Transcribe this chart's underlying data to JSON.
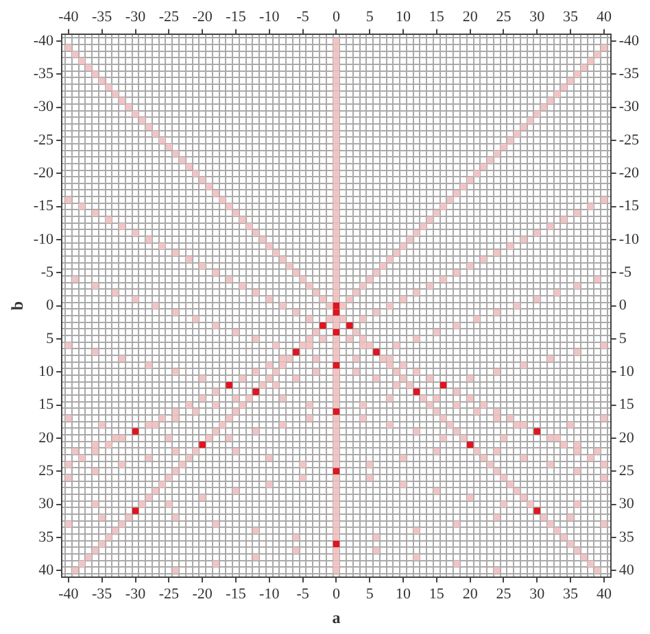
{
  "chart_data": {
    "type": "scatter",
    "xlabel": "a",
    "ylabel": "b",
    "marker": "square",
    "grid": true,
    "legend": false,
    "xlim": [
      -41,
      41
    ],
    "ylim": [
      41,
      -41
    ],
    "xticks": [
      {
        "value": -40.5,
        "label": null
      },
      -40,
      {
        "value": -39.5,
        "label": null
      },
      {
        "value": -38.5,
        "label": null
      },
      {
        "value": -37.5,
        "label": null
      },
      {
        "value": -36.5,
        "label": null
      },
      {
        "value": -35.5,
        "label": null
      },
      -35,
      {
        "value": -34.5,
        "label": null
      },
      {
        "value": -33.5,
        "label": null
      },
      {
        "value": -32.5,
        "label": null
      },
      {
        "value": -31.5,
        "label": null
      },
      {
        "value": -30.5,
        "label": null
      },
      -30,
      {
        "value": -29.5,
        "label": null
      },
      {
        "value": -28.5,
        "label": null
      },
      {
        "value": -27.5,
        "label": null
      },
      {
        "value": -26.5,
        "label": null
      },
      {
        "value": -25.5,
        "label": null
      },
      -25,
      {
        "value": -24.5,
        "label": null
      },
      {
        "value": -23.5,
        "label": null
      },
      {
        "value": -22.5,
        "label": null
      },
      {
        "value": -21.5,
        "label": null
      },
      {
        "value": -20.5,
        "label": null
      },
      -20,
      {
        "value": -19.5,
        "label": null
      },
      {
        "value": -18.5,
        "label": null
      },
      {
        "value": -17.5,
        "label": null
      },
      {
        "value": -16.5,
        "label": null
      },
      {
        "value": -15.5,
        "label": null
      },
      -15,
      {
        "value": -14.5,
        "label": null
      },
      {
        "value": -13.5,
        "label": null
      },
      {
        "value": -12.5,
        "label": null
      },
      {
        "value": -11.5,
        "label": null
      },
      {
        "value": -10.5,
        "label": null
      },
      -10,
      {
        "value": -9.5,
        "label": null
      },
      {
        "value": -8.5,
        "label": null
      },
      {
        "value": -7.5,
        "label": null
      },
      {
        "value": -6.5,
        "label": null
      },
      {
        "value": -5.5,
        "label": null
      },
      -5,
      {
        "value": -4.5,
        "label": null
      },
      {
        "value": -3.5,
        "label": null
      },
      {
        "value": -2.5,
        "label": null
      },
      {
        "value": -1.5,
        "label": null
      },
      {
        "value": -0.5,
        "label": null
      },
      0,
      {
        "value": 0.5,
        "label": null
      },
      {
        "value": 1.5,
        "label": null
      },
      {
        "value": 2.5,
        "label": null
      },
      {
        "value": 3.5,
        "label": null
      },
      {
        "value": 4.5,
        "label": null
      },
      5,
      {
        "value": 5.5,
        "label": null
      },
      {
        "value": 6.5,
        "label": null
      },
      {
        "value": 7.5,
        "label": null
      },
      {
        "value": 8.5,
        "label": null
      },
      {
        "value": 9.5,
        "label": null
      },
      10,
      {
        "value": 10.5,
        "label": null
      },
      {
        "value": 11.5,
        "label": null
      },
      {
        "value": 12.5,
        "label": null
      },
      {
        "value": 13.5,
        "label": null
      },
      {
        "value": 14.5,
        "label": null
      },
      15,
      {
        "value": 15.5,
        "label": null
      },
      {
        "value": 16.5,
        "label": null
      },
      {
        "value": 17.5,
        "label": null
      },
      {
        "value": 18.5,
        "label": null
      },
      {
        "value": 19.5,
        "label": null
      },
      20,
      {
        "value": 20.5,
        "label": null
      },
      {
        "value": 21.5,
        "label": null
      },
      {
        "value": 22.5,
        "label": null
      },
      {
        "value": 23.5,
        "label": null
      },
      {
        "value": 24.5,
        "label": null
      },
      25,
      {
        "value": 25.5,
        "label": null
      },
      {
        "value": 26.5,
        "label": null
      },
      {
        "value": 27.5,
        "label": null
      },
      {
        "value": 28.5,
        "label": null
      },
      {
        "value": 29.5,
        "label": null
      },
      30,
      {
        "value": 30.5,
        "label": null
      },
      {
        "value": 31.5,
        "label": null
      },
      {
        "value": 32.5,
        "label": null
      },
      {
        "value": 33.5,
        "label": null
      },
      {
        "value": 34.5,
        "label": null
      },
      35,
      {
        "value": 35.5,
        "label": null
      },
      {
        "value": 36.5,
        "label": null
      },
      {
        "value": 37.5,
        "label": null
      },
      {
        "value": 38.5,
        "label": null
      },
      {
        "value": 39.5,
        "label": null
      },
      40,
      {
        "value": 40.5,
        "label": null
      }
    ],
    "yticks": [
      {
        "value": -40.5,
        "label": null
      },
      -40,
      {
        "value": -39.5,
        "label": null
      },
      {
        "value": -38.5,
        "label": null
      },
      {
        "value": -37.5,
        "label": null
      },
      {
        "value": -36.5,
        "label": null
      },
      {
        "value": -35.5,
        "label": null
      },
      -35,
      {
        "value": -34.5,
        "label": null
      },
      {
        "value": -33.5,
        "label": null
      },
      {
        "value": -32.5,
        "label": null
      },
      {
        "value": -31.5,
        "label": null
      },
      {
        "value": -30.5,
        "label": null
      },
      -30,
      {
        "value": -29.5,
        "label": null
      },
      {
        "value": -28.5,
        "label": null
      },
      {
        "value": -27.5,
        "label": null
      },
      {
        "value": -26.5,
        "label": null
      },
      {
        "value": -25.5,
        "label": null
      },
      -25,
      {
        "value": -24.5,
        "label": null
      },
      {
        "value": -23.5,
        "label": null
      },
      {
        "value": -22.5,
        "label": null
      },
      {
        "value": -21.5,
        "label": null
      },
      {
        "value": -20.5,
        "label": null
      },
      -20,
      {
        "value": -19.5,
        "label": null
      },
      {
        "value": -18.5,
        "label": null
      },
      {
        "value": -17.5,
        "label": null
      },
      {
        "value": -16.5,
        "label": null
      },
      {
        "value": -15.5,
        "label": null
      },
      -15,
      {
        "value": -14.5,
        "label": null
      },
      {
        "value": -13.5,
        "label": null
      },
      {
        "value": -12.5,
        "label": null
      },
      {
        "value": -11.5,
        "label": null
      },
      {
        "value": -10.5,
        "label": null
      },
      -10,
      {
        "value": -9.5,
        "label": null
      },
      {
        "value": -8.5,
        "label": null
      },
      {
        "value": -7.5,
        "label": null
      },
      {
        "value": -6.5,
        "label": null
      },
      {
        "value": -5.5,
        "label": null
      },
      -5,
      {
        "value": -4.5,
        "label": null
      },
      {
        "value": -3.5,
        "label": null
      },
      {
        "value": -2.5,
        "label": null
      },
      {
        "value": -1.5,
        "label": null
      },
      {
        "value": -0.5,
        "label": null
      },
      0,
      {
        "value": 0.5,
        "label": null
      },
      {
        "value": 1.5,
        "label": null
      },
      {
        "value": 2.5,
        "label": null
      },
      {
        "value": 3.5,
        "label": null
      },
      {
        "value": 4.5,
        "label": null
      },
      5,
      {
        "value": 5.5,
        "label": null
      },
      {
        "value": 6.5,
        "label": null
      },
      {
        "value": 7.5,
        "label": null
      },
      {
        "value": 8.5,
        "label": null
      },
      {
        "value": 9.5,
        "label": null
      },
      10,
      {
        "value": 10.5,
        "label": null
      },
      {
        "value": 11.5,
        "label": null
      },
      {
        "value": 12.5,
        "label": null
      },
      {
        "value": 13.5,
        "label": null
      },
      {
        "value": 14.5,
        "label": null
      },
      15,
      {
        "value": 15.5,
        "label": null
      },
      {
        "value": 16.5,
        "label": null
      },
      {
        "value": 17.5,
        "label": null
      },
      {
        "value": 18.5,
        "label": null
      },
      {
        "value": 19.5,
        "label": null
      },
      20,
      {
        "value": 20.5,
        "label": null
      },
      {
        "value": 21.5,
        "label": null
      },
      {
        "value": 22.5,
        "label": null
      },
      {
        "value": 23.5,
        "label": null
      },
      {
        "value": 24.5,
        "label": null
      },
      25,
      {
        "value": 25.5,
        "label": null
      },
      {
        "value": 26.5,
        "label": null
      },
      {
        "value": 27.5,
        "label": null
      },
      {
        "value": 28.5,
        "label": null
      },
      {
        "value": 29.5,
        "label": null
      },
      30,
      {
        "value": 30.5,
        "label": null
      },
      {
        "value": 31.5,
        "label": null
      },
      {
        "value": 32.5,
        "label": null
      },
      {
        "value": 33.5,
        "label": null
      },
      {
        "value": 34.5,
        "label": null
      },
      35,
      {
        "value": 35.5,
        "label": null
      },
      {
        "value": 36.5,
        "label": null
      },
      {
        "value": 37.5,
        "label": null
      },
      {
        "value": 38.5,
        "label": null
      },
      {
        "value": 39.5,
        "label": null
      },
      40,
      {
        "value": 40.5,
        "label": null
      }
    ],
    "x2lim": [
      -41,
      41
    ],
    "x2ticks": [
      -40,
      -35,
      -30,
      -25,
      -20,
      -15,
      -10,
      -5,
      0,
      5,
      10,
      15,
      20,
      25,
      30,
      35,
      40
    ],
    "y2lim": [
      41,
      -41
    ],
    "y2ticks": [
      -40,
      -35,
      -30,
      -25,
      -20,
      -15,
      -10,
      -5,
      0,
      5,
      10,
      15,
      20,
      25,
      30,
      35,
      40
    ],
    "series": [
      {
        "color": "#e0141e",
        "x": [
          0,
          0,
          0,
          0,
          0,
          0,
          0,
          2,
          -2,
          16,
          -16,
          6,
          -6,
          12,
          -12,
          20,
          -20,
          30,
          -30,
          30,
          -30
        ],
        "values": [
          0,
          1,
          4,
          9,
          16,
          25,
          36,
          3,
          3,
          12,
          12,
          7,
          7,
          13,
          13,
          21,
          21,
          31,
          31,
          19,
          19
        ]
      },
      {
        "color": "#f2c4c4",
        "x": [
          0,
          0,
          0,
          0,
          0,
          0,
          0,
          0,
          0,
          0,
          0,
          0,
          0,
          0,
          0,
          0,
          0,
          0,
          0,
          0,
          0,
          0,
          0,
          0,
          0,
          0,
          0,
          0,
          0,
          0,
          0,
          0,
          0,
          0,
          0,
          0,
          0,
          0,
          0,
          0,
          0,
          0,
          0,
          0,
          0,
          0,
          0,
          0,
          0,
          0,
          0,
          0,
          0,
          0,
          0,
          0,
          0,
          0,
          0,
          0,
          0,
          0,
          0,
          0,
          0,
          0,
          0,
          0,
          0,
          0,
          0,
          0,
          0,
          0
        ],
        "values": [
          -40,
          -39,
          -38,
          -37,
          -36,
          -35,
          -34,
          -33,
          -32,
          -31,
          -30,
          -29,
          -28,
          -27,
          -26,
          -25,
          -24,
          -23,
          -22,
          -21,
          -20,
          -19,
          -18,
          -17,
          -16,
          -15,
          -14,
          -13,
          -12,
          -11,
          -10,
          -9,
          -8,
          -7,
          -6,
          -5,
          -4,
          -3,
          -2,
          -1,
          2,
          3,
          5,
          6,
          7,
          8,
          10,
          11,
          12,
          13,
          14,
          15,
          17,
          18,
          19,
          20,
          21,
          22,
          23,
          24,
          26,
          27,
          28,
          29,
          30,
          31,
          32,
          33,
          34,
          35,
          37,
          38,
          39,
          40
        ]
      },
      {
        "color": "#f2c4c4",
        "x": [
          -40,
          -39,
          -38,
          -37,
          -36,
          -35,
          -34,
          -33,
          -32,
          -31,
          -30,
          -29,
          -28,
          -27,
          -26,
          -25,
          -24,
          -23,
          -22,
          -21,
          -20,
          -19,
          -18,
          -17,
          -16,
          -15,
          -14,
          -13,
          -12,
          -11,
          -10,
          -9,
          -8,
          -7,
          -6,
          -5,
          -4,
          -3,
          -2,
          -1,
          1,
          3,
          4,
          5,
          7,
          8,
          9,
          10,
          11,
          13,
          14,
          15,
          16,
          17,
          18,
          19,
          21,
          22,
          23,
          24,
          25,
          26,
          27,
          28,
          29,
          31,
          32,
          33,
          34,
          35,
          36,
          37,
          38,
          39
        ],
        "values": [
          -39,
          -38,
          -37,
          -36,
          -35,
          -34,
          -33,
          -32,
          -31,
          -30,
          -29,
          -28,
          -27,
          -26,
          -25,
          -24,
          -23,
          -22,
          -21,
          -20,
          -19,
          -18,
          -17,
          -16,
          -15,
          -14,
          -13,
          -12,
          -11,
          -10,
          -9,
          -8,
          -7,
          -6,
          -5,
          -4,
          -3,
          -2,
          -1,
          0,
          2,
          4,
          5,
          6,
          8,
          9,
          10,
          11,
          12,
          14,
          15,
          16,
          17,
          18,
          19,
          20,
          22,
          23,
          24,
          25,
          26,
          27,
          28,
          29,
          30,
          32,
          33,
          34,
          35,
          36,
          37,
          38,
          39,
          40
        ]
      },
      {
        "color": "#f2c4c4",
        "x": [
          40,
          39,
          38,
          37,
          36,
          35,
          34,
          33,
          32,
          31,
          30,
          29,
          28,
          27,
          26,
          25,
          24,
          23,
          22,
          21,
          20,
          19,
          18,
          17,
          16,
          15,
          14,
          13,
          12,
          11,
          10,
          9,
          8,
          7,
          6,
          5,
          4,
          3,
          2,
          1,
          -1,
          -3,
          -4,
          -5,
          -7,
          -8,
          -9,
          -10,
          -11,
          -13,
          -14,
          -15,
          -16,
          -17,
          -18,
          -19,
          -21,
          -22,
          -23,
          -24,
          -25,
          -26,
          -27,
          -28,
          -29,
          -31,
          -32,
          -33,
          -34,
          -35,
          -36,
          -37,
          -38,
          -39
        ],
        "values": [
          -39,
          -38,
          -37,
          -36,
          -35,
          -34,
          -33,
          -32,
          -31,
          -30,
          -29,
          -28,
          -27,
          -26,
          -25,
          -24,
          -23,
          -22,
          -21,
          -20,
          -19,
          -18,
          -17,
          -16,
          -15,
          -14,
          -13,
          -12,
          -11,
          -10,
          -9,
          -8,
          -7,
          -6,
          -5,
          -4,
          -3,
          -2,
          -1,
          0,
          2,
          4,
          5,
          6,
          8,
          9,
          10,
          11,
          12,
          14,
          15,
          16,
          17,
          18,
          19,
          20,
          22,
          23,
          24,
          25,
          26,
          27,
          28,
          29,
          30,
          32,
          33,
          34,
          35,
          36,
          37,
          38,
          39,
          40
        ]
      },
      {
        "color": "#f2c4c4",
        "x": [
          -40,
          -38,
          -36,
          -34,
          -32,
          -30,
          -28,
          -26,
          -24,
          -22,
          -20,
          -18,
          -16,
          -14,
          -12,
          -10,
          -8,
          -6,
          -4,
          2,
          4,
          8,
          10,
          12,
          14,
          18,
          20,
          22,
          24,
          26,
          28,
          32,
          34,
          36,
          38,
          40
        ],
        "values": [
          -16,
          -15,
          -14,
          -13,
          -12,
          -11,
          -10,
          -9,
          -8,
          -7,
          -6,
          -5,
          -4,
          -3,
          -2,
          -1,
          0,
          1,
          2,
          5,
          6,
          8,
          9,
          10,
          11,
          13,
          14,
          15,
          16,
          17,
          18,
          20,
          21,
          22,
          23,
          24
        ]
      },
      {
        "color": "#f2c4c4",
        "x": [
          40,
          38,
          36,
          34,
          32,
          30,
          28,
          26,
          24,
          22,
          20,
          18,
          16,
          14,
          12,
          10,
          8,
          6,
          4,
          -2,
          -4,
          -8,
          -10,
          -12,
          -14,
          -18,
          -20,
          -22,
          -24,
          -26,
          -28,
          -32,
          -34,
          -36,
          -38,
          -40
        ],
        "values": [
          -16,
          -15,
          -14,
          -13,
          -12,
          -11,
          -10,
          -9,
          -8,
          -7,
          -6,
          -5,
          -4,
          -3,
          -2,
          -1,
          0,
          1,
          2,
          5,
          6,
          8,
          9,
          10,
          11,
          13,
          14,
          15,
          16,
          17,
          18,
          20,
          21,
          22,
          23,
          24
        ]
      },
      {
        "color": "#f2c4c4",
        "x": [
          -39,
          -36,
          -33,
          -30,
          -27,
          -24,
          -21,
          -18,
          -15,
          -12,
          -9,
          -3,
          3,
          6,
          9,
          15,
          18,
          21,
          24,
          27,
          33,
          36,
          39
        ],
        "values": [
          -4,
          -3,
          -2,
          -1,
          0,
          1,
          2,
          3,
          4,
          5,
          6,
          8,
          10,
          11,
          12,
          14,
          15,
          16,
          17,
          18,
          20,
          21,
          22
        ]
      },
      {
        "color": "#f2c4c4",
        "x": [
          39,
          36,
          33,
          30,
          27,
          24,
          21,
          18,
          15,
          12,
          9,
          3,
          -3,
          -6,
          -9,
          -15,
          -18,
          -21,
          -24,
          -27,
          -33,
          -36,
          -39
        ],
        "values": [
          -4,
          -3,
          -2,
          -1,
          0,
          1,
          2,
          3,
          4,
          5,
          6,
          8,
          10,
          11,
          12,
          14,
          15,
          16,
          17,
          18,
          20,
          21,
          22
        ]
      },
      {
        "color": "#f2c4c4",
        "x": [
          -40,
          -36,
          -32,
          -28,
          -24,
          -20,
          -8,
          -4,
          4,
          8,
          12,
          16,
          24,
          28,
          32,
          36,
          40
        ],
        "values": [
          6,
          7,
          8,
          9,
          10,
          11,
          14,
          15,
          17,
          18,
          19,
          20,
          22,
          23,
          24,
          25,
          26
        ]
      },
      {
        "color": "#f2c4c4",
        "x": [
          40,
          36,
          32,
          28,
          24,
          20,
          8,
          4,
          -4,
          -8,
          -12,
          -16,
          -24,
          -28,
          -32,
          -36,
          -40
        ],
        "values": [
          6,
          7,
          8,
          9,
          10,
          11,
          14,
          15,
          17,
          18,
          19,
          20,
          22,
          23,
          24,
          25,
          26
        ]
      },
      {
        "color": "#f2c4c4",
        "x": [
          -40,
          -35,
          -25,
          -15,
          -10,
          -5,
          5,
          10,
          15,
          20,
          25,
          35,
          40
        ],
        "values": [
          17,
          18,
          20,
          22,
          23,
          24,
          26,
          27,
          28,
          29,
          30,
          32,
          33
        ]
      },
      {
        "color": "#f2c4c4",
        "x": [
          40,
          35,
          25,
          15,
          10,
          5,
          -5,
          -10,
          -15,
          -20,
          -25,
          -35,
          -40
        ],
        "values": [
          17,
          18,
          20,
          22,
          23,
          24,
          26,
          27,
          28,
          29,
          30,
          32,
          33
        ]
      },
      {
        "color": "#f2c4c4",
        "x": [
          -36,
          -24,
          -18,
          -12,
          -6,
          6,
          12,
          18,
          24
        ],
        "values": [
          30,
          32,
          33,
          34,
          35,
          37,
          38,
          39,
          40
        ]
      },
      {
        "color": "#f2c4c4",
        "x": [
          36,
          24,
          18,
          12,
          6,
          -6,
          -12,
          -18,
          -24
        ],
        "values": [
          30,
          32,
          33,
          34,
          35,
          37,
          38,
          39,
          40
        ]
      }
    ]
  }
}
